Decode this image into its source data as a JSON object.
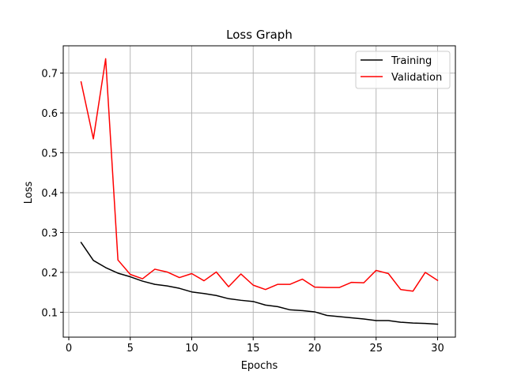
{
  "chart_data": {
    "type": "line",
    "title": "Loss Graph",
    "xlabel": "Epochs",
    "ylabel": "Loss",
    "xlim": [
      -0.45,
      31.45
    ],
    "ylim": [
      0.0375,
      0.7685
    ],
    "xticks": [
      0,
      5,
      10,
      15,
      20,
      25,
      30
    ],
    "yticks": [
      0.1,
      0.2,
      0.3,
      0.4,
      0.5,
      0.6,
      0.7
    ],
    "grid": true,
    "legend_position": "top-right",
    "x": [
      1,
      2,
      3,
      4,
      5,
      6,
      7,
      8,
      9,
      10,
      11,
      12,
      13,
      14,
      15,
      16,
      17,
      18,
      19,
      20,
      21,
      22,
      23,
      24,
      25,
      26,
      27,
      28,
      29,
      30
    ],
    "series": [
      {
        "name": "Training",
        "color": "#000000",
        "values": [
          0.275,
          0.23,
          0.212,
          0.198,
          0.189,
          0.178,
          0.17,
          0.166,
          0.16,
          0.151,
          0.147,
          0.142,
          0.134,
          0.13,
          0.127,
          0.118,
          0.114,
          0.106,
          0.104,
          0.101,
          0.092,
          0.089,
          0.086,
          0.083,
          0.079,
          0.079,
          0.075,
          0.073,
          0.072,
          0.07
        ]
      },
      {
        "name": "Validation",
        "color": "#ff0000",
        "values": [
          0.678,
          0.535,
          0.736,
          0.231,
          0.195,
          0.184,
          0.208,
          0.201,
          0.187,
          0.197,
          0.179,
          0.201,
          0.164,
          0.196,
          0.168,
          0.157,
          0.17,
          0.17,
          0.183,
          0.163,
          0.162,
          0.162,
          0.175,
          0.174,
          0.205,
          0.197,
          0.157,
          0.153,
          0.2,
          0.18
        ]
      }
    ]
  }
}
